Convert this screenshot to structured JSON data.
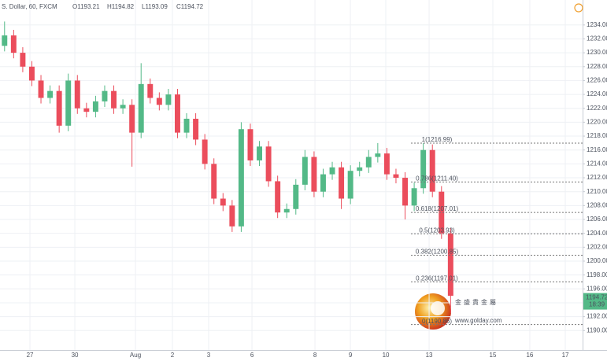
{
  "chart_data": {
    "type": "candlestick",
    "title": "S. Dollar, 60, FXCM",
    "ohlc_legend": [
      "O1193.21",
      "H1194.82",
      "L1193.09",
      "C1194.72"
    ],
    "up_color": "#53b987",
    "down_color": "#eb4d5c",
    "grid": true,
    "ylim": [
      1187.2,
      1237.6
    ],
    "yticks": [
      {
        "value": 1190,
        "label": "1190.00"
      },
      {
        "value": 1192,
        "label": "1192.00"
      },
      {
        "value": 1194,
        "label": "1194.00"
      },
      {
        "value": 1196,
        "label": "1196.00"
      },
      {
        "value": 1198,
        "label": "1198.00"
      },
      {
        "value": 1200,
        "label": "1200.00"
      },
      {
        "value": 1202,
        "label": "1202.00"
      },
      {
        "value": 1204,
        "label": "1204.00"
      },
      {
        "value": 1206,
        "label": "1206.00"
      },
      {
        "value": 1208,
        "label": "1208.00"
      },
      {
        "value": 1210,
        "label": "1210.00"
      },
      {
        "value": 1212,
        "label": "1212.00"
      },
      {
        "value": 1214,
        "label": "1214.00"
      },
      {
        "value": 1216,
        "label": "1216.00"
      },
      {
        "value": 1218,
        "label": "1218.00"
      },
      {
        "value": 1220,
        "label": "1220.00"
      },
      {
        "value": 1222,
        "label": "1222.00"
      },
      {
        "value": 1224,
        "label": "1224.00"
      },
      {
        "value": 1226,
        "label": "1226.00"
      },
      {
        "value": 1228,
        "label": "1228.00"
      },
      {
        "value": 1230,
        "label": "1230.00"
      },
      {
        "value": 1232,
        "label": "1232.00"
      },
      {
        "value": 1234,
        "label": "1234.00"
      }
    ],
    "xlim": [
      -0.5,
      63.5
    ],
    "xticks": [
      {
        "value": 2.79,
        "label": "27"
      },
      {
        "value": 7.72,
        "label": "30"
      },
      {
        "value": 14.38,
        "label": "Aug"
      },
      {
        "value": 18.44,
        "label": "2"
      },
      {
        "value": 22.42,
        "label": "3"
      },
      {
        "value": 27.18,
        "label": "6"
      },
      {
        "value": 34.1,
        "label": "8"
      },
      {
        "value": 37.99,
        "label": "9"
      },
      {
        "value": 41.88,
        "label": "10"
      },
      {
        "value": 46.64,
        "label": "13"
      },
      {
        "value": 53.64,
        "label": "15"
      },
      {
        "value": 57.7,
        "label": "16"
      },
      {
        "value": 61.6,
        "label": "17"
      }
    ],
    "open": [
      1231,
      1232.5,
      1230,
      1228,
      1226,
      1223.5,
      1224.5,
      1219.5,
      1226,
      1222,
      1221.5,
      1223,
      1224.5,
      1222,
      1222.5,
      1218.5,
      1225.5,
      1223.5,
      1222.5,
      1224,
      1218.5,
      1220.5,
      1217.5,
      1214,
      1209,
      1208,
      1205,
      1219,
      1214.5,
      1216.5,
      1211.5,
      1207,
      1207.5,
      1211,
      1215,
      1210,
      1212.5,
      1213.5,
      1209,
      1213,
      1213.5,
      1215,
      1215.5,
      1212.5,
      1212,
      1208,
      1210.5,
      1216,
      1210,
      1204
    ],
    "high": [
      1234.5,
      1233.3,
      1230.8,
      1228.8,
      1226.8,
      1225.3,
      1225.3,
      1227,
      1226.8,
      1222.8,
      1223.8,
      1225.3,
      1225.3,
      1223.3,
      1223.3,
      1228.5,
      1226.3,
      1224.3,
      1224.8,
      1224.8,
      1221.3,
      1221.3,
      1218.3,
      1214.8,
      1209.8,
      1208.8,
      1220,
      1219.8,
      1217.3,
      1217.3,
      1212.3,
      1208.3,
      1211.8,
      1216,
      1215.8,
      1213.3,
      1214.3,
      1214.3,
      1213.8,
      1214.3,
      1216,
      1217,
      1216.3,
      1213.3,
      1212.8,
      1211.3,
      1217,
      1216.8,
      1210.8,
      1204.8
    ],
    "low": [
      1230.2,
      1229.2,
      1227.2,
      1225.2,
      1222.7,
      1222.7,
      1218.5,
      1218.7,
      1221.2,
      1220.7,
      1220.7,
      1222.2,
      1221.2,
      1221.2,
      1213.6,
      1217.7,
      1222.7,
      1221.7,
      1221.7,
      1217.7,
      1217.7,
      1216.7,
      1213.2,
      1208.2,
      1207.2,
      1204.2,
      1204.2,
      1213.7,
      1213.7,
      1210.7,
      1206.2,
      1206.2,
      1206.7,
      1210.2,
      1209.2,
      1209.2,
      1211.7,
      1207.5,
      1208.2,
      1212.2,
      1212.7,
      1214.2,
      1211.7,
      1211.2,
      1206,
      1207.2,
      1209.7,
      1209.2,
      1203.2,
      1192.5
    ],
    "close": [
      1232.5,
      1230,
      1228,
      1226,
      1223.5,
      1224.5,
      1219.5,
      1226,
      1222,
      1221.5,
      1223,
      1224.5,
      1222,
      1222.5,
      1218.5,
      1225.5,
      1223.5,
      1222.5,
      1224,
      1218.5,
      1220.5,
      1217.5,
      1214,
      1209,
      1208,
      1205,
      1219,
      1214.5,
      1216.5,
      1211.5,
      1207,
      1207.5,
      1211,
      1215,
      1210,
      1212.5,
      1213.5,
      1209,
      1213,
      1213.5,
      1215,
      1215.5,
      1212.5,
      1212,
      1208,
      1210.5,
      1216,
      1210,
      1204,
      1195
    ],
    "fib_levels": [
      {
        "value": 1216.99,
        "label": "1(1216.99)"
      },
      {
        "value": 1211.4,
        "label": "0.786(1211.40)"
      },
      {
        "value": 1207.01,
        "label": "0.618(1207.01)"
      },
      {
        "value": 1203.93,
        "label": "0.5(1203.93)"
      },
      {
        "value": 1200.85,
        "label": "0.382(1200.85)"
      },
      {
        "value": 1197.01,
        "label": "0.236(1197.01)"
      },
      {
        "value": 1190.86,
        "label": "0(1190.86)"
      }
    ],
    "last_price": 1194.72,
    "countdown": "18:39",
    "watermark": {
      "title": "金盛貴金屬",
      "url": "www.golday.com"
    }
  }
}
